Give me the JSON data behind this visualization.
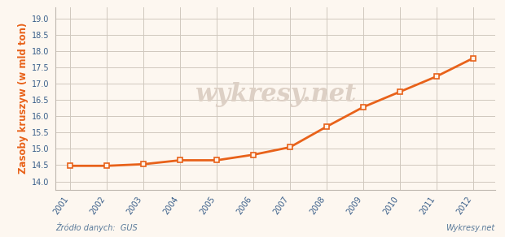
{
  "years": [
    2001,
    2002,
    2003,
    2004,
    2005,
    2006,
    2007,
    2008,
    2009,
    2010,
    2011,
    2012
  ],
  "values": [
    14.48,
    14.48,
    14.53,
    14.65,
    14.65,
    14.82,
    15.05,
    15.68,
    16.28,
    16.75,
    17.22,
    17.78
  ],
  "line_color": "#e8621a",
  "marker_style": "s",
  "marker_color": "#e8621a",
  "marker_facecolor": "#fdf2e9",
  "ylabel": "Zasoby kruszyw (w mld ton)",
  "ylabel_color": "#e8621a",
  "source_text": "Źródło danych:  GUS",
  "watermark_text": "wykresy.net",
  "watermark_color": "#ddd0c5",
  "footer_text": "Wykresy.net",
  "background_color": "#fdf7f0",
  "grid_color": "#d0c8be",
  "axis_color": "#c0b8b0",
  "tick_color": "#3a5f8a",
  "ylim_min": 13.75,
  "ylim_max": 19.35,
  "yticks": [
    14.0,
    14.5,
    15.0,
    15.5,
    16.0,
    16.5,
    17.0,
    17.5,
    18.0,
    18.5,
    19.0
  ],
  "source_fontsize": 7.0,
  "footer_fontsize": 7.0,
  "ylabel_fontsize": 8.5,
  "tick_fontsize": 7.0
}
